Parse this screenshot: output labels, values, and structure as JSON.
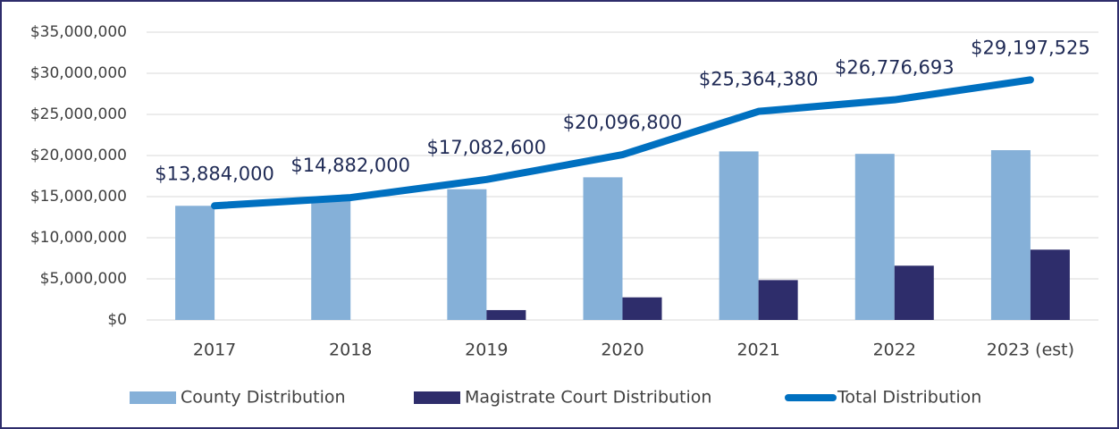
{
  "chart_data": {
    "type": "bar",
    "categories": [
      "2017",
      "2018",
      "2019",
      "2020",
      "2021",
      "2022",
      "2023 (est)"
    ],
    "series": [
      {
        "name": "County Distribution",
        "type": "bar",
        "color": "#85b0d8",
        "values": [
          13884000,
          14882000,
          15900000,
          17350000,
          20500000,
          20200000,
          20650000
        ]
      },
      {
        "name": "Magistrate Court Distribution",
        "type": "bar",
        "color": "#2e2d6b",
        "values": [
          0,
          0,
          1200000,
          2750000,
          4850000,
          6600000,
          8550000
        ]
      },
      {
        "name": "Total Distribution",
        "type": "line",
        "color": "#0070c0",
        "values": [
          13884000,
          14882000,
          17082600,
          20096800,
          25364380,
          26776693,
          29197525
        ],
        "value_labels": [
          "$13,884,000",
          "$14,882,000",
          "$17,082,600",
          "$20,096,800",
          "$25,364,380",
          "$26,776,693",
          "$29,197,525"
        ]
      }
    ],
    "ylim": [
      0,
      35000000
    ],
    "yticks": [
      {
        "value": 0,
        "label": "$0"
      },
      {
        "value": 5000000,
        "label": "$5,000,000"
      },
      {
        "value": 10000000,
        "label": "$10,000,000"
      },
      {
        "value": 15000000,
        "label": "$15,000,000"
      },
      {
        "value": 20000000,
        "label": "$20,000,000"
      },
      {
        "value": 25000000,
        "label": "$25,000,000"
      },
      {
        "value": 30000000,
        "label": "$30,000,000"
      },
      {
        "value": 35000000,
        "label": "$35,000,000"
      }
    ],
    "grid": true,
    "legend": "bottom"
  }
}
